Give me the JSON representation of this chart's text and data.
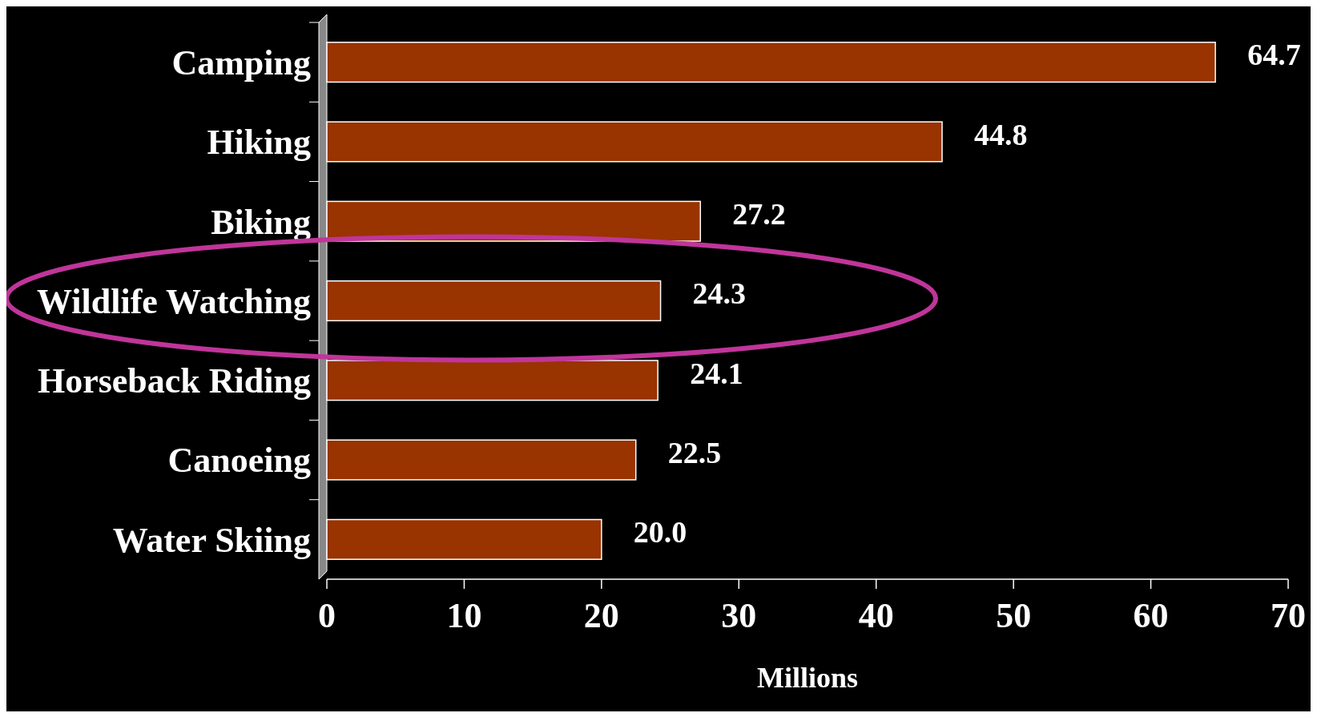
{
  "chart_data": {
    "type": "bar",
    "orientation": "horizontal",
    "xlabel": "Millions",
    "categories": [
      "Camping",
      "Hiking",
      "Biking",
      "Wildlife Watching",
      "Horseback Riding",
      "Canoeing",
      "Water Skiing"
    ],
    "values": [
      64.7,
      44.8,
      27.2,
      24.3,
      24.1,
      22.5,
      20.0
    ],
    "value_labels": [
      "64.7",
      "44.8",
      "27.2",
      "24.3",
      "24.1",
      "22.5",
      "20.0"
    ],
    "color": "#993300",
    "xlim": [
      0,
      70
    ],
    "xticks": [
      0,
      10,
      20,
      30,
      40,
      50,
      60,
      70
    ],
    "grid": false
  }
}
